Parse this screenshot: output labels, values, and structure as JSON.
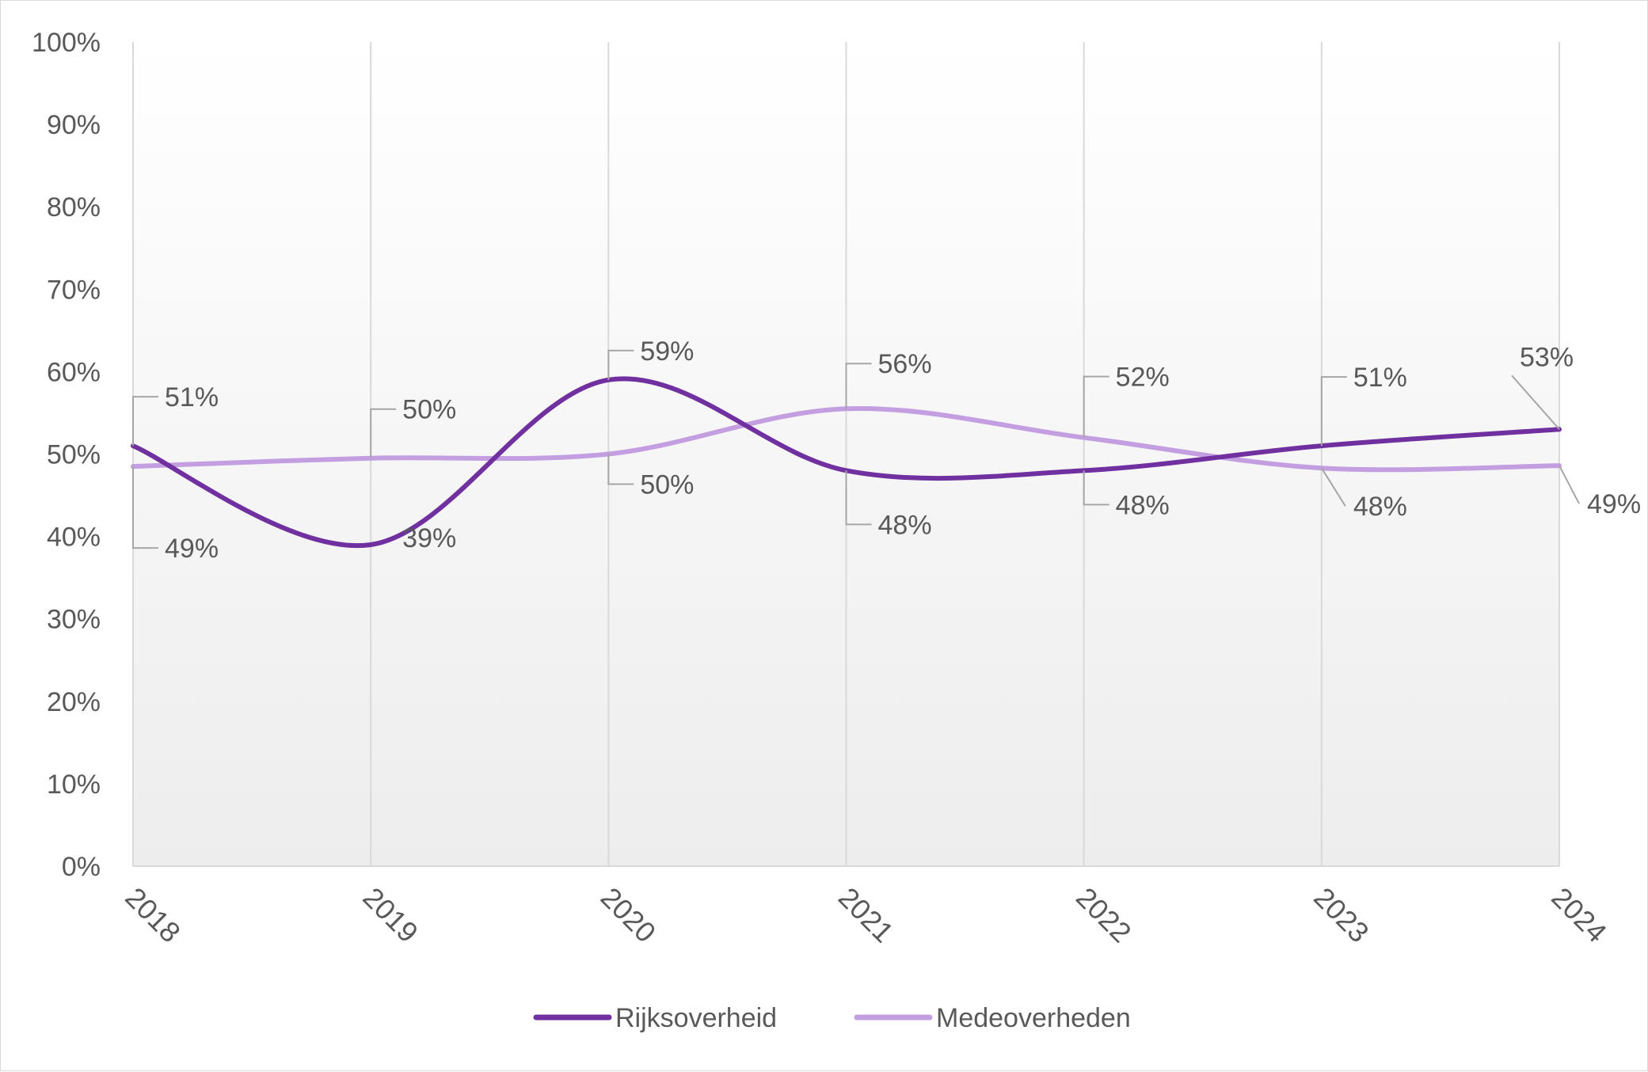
{
  "chart_data": {
    "type": "line",
    "title": "",
    "xlabel": "",
    "ylabel": "",
    "x": [
      "2018",
      "2019",
      "2020",
      "2021",
      "2022",
      "2023",
      "2024"
    ],
    "ylim": [
      0,
      100
    ],
    "y_ticks": [
      "0%",
      "10%",
      "20%",
      "30%",
      "40%",
      "50%",
      "60%",
      "70%",
      "80%",
      "90%",
      "100%"
    ],
    "smooth": true,
    "grid": "vertical",
    "legend_position": "bottom",
    "series": [
      {
        "name": "Rijksoverheid",
        "color": "#7030a0",
        "values": [
          51,
          39,
          59,
          48,
          48,
          51,
          53
        ],
        "labels": [
          "51%",
          "39%",
          "59%",
          "48%",
          "48%",
          "51%",
          "53%"
        ]
      },
      {
        "name": "Medeoverheden",
        "color": "#c39ee0",
        "values": [
          48.5,
          49.5,
          50,
          55.5,
          52,
          48.3,
          48.6
        ],
        "labels": [
          "49%",
          "50%",
          "50%",
          "56%",
          "52%",
          "48%",
          "49%"
        ]
      }
    ]
  }
}
